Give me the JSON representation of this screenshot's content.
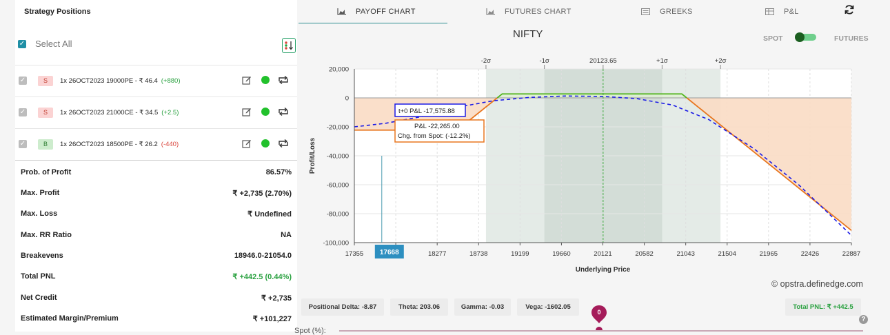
{
  "left_panel": {
    "title": "Strategy Positions",
    "select_all": "Select All",
    "positions": [
      {
        "side": "S",
        "text": "1x  26OCT2023  19000PE  - ₹ 46.4",
        "chg": "(+880)",
        "chg_dir": "pos"
      },
      {
        "side": "S",
        "text": "1x  26OCT2023  21000CE  - ₹ 34.5",
        "chg": "(+2.5)",
        "chg_dir": "pos"
      },
      {
        "side": "B",
        "text": "1x  26OCT2023  18500PE  - ₹ 26.2",
        "chg": "(-440)",
        "chg_dir": "neg"
      }
    ],
    "metrics": [
      {
        "label": "Prob. of Profit",
        "value": "86.57%",
        "green": false
      },
      {
        "label": "Max. Profit",
        "value": "₹ +2,735 (2.70%)",
        "green": false
      },
      {
        "label": "Max. Loss",
        "value": "₹ Undefined",
        "green": false
      },
      {
        "label": "Max. RR Ratio",
        "value": "NA",
        "green": false
      },
      {
        "label": "Breakevens",
        "value": "18946.0-21054.0",
        "green": false
      },
      {
        "label": "Total PNL",
        "value": "₹ +442.5 (0.44%)",
        "green": true
      },
      {
        "label": "Net Credit",
        "value": "₹ +2,735",
        "green": false
      },
      {
        "label": "Estimated Margin/Premium",
        "value": "₹ +101,227",
        "green": false
      }
    ]
  },
  "tabs": [
    {
      "label": "PAYOFF CHART",
      "icon": "area-chart-icon",
      "active": true
    },
    {
      "label": "FUTURES CHART",
      "icon": "area-chart-icon",
      "active": false
    },
    {
      "label": "GREEKS",
      "icon": "list-icon",
      "active": false
    },
    {
      "label": "P&L",
      "icon": "table-icon",
      "active": false
    }
  ],
  "header": {
    "chart_name": "NIFTY",
    "spot_label": "SPOT",
    "futures_label": "FUTURES",
    "credit": "© opstra.definedge.com"
  },
  "colors": {
    "accent": "#1f8fa5",
    "payoff_line": "#e8761f",
    "profit_line": "#53b51f",
    "t0_line": "#1a1ae6",
    "loss_fill": "#f9dcc4",
    "sd_band": "#e4ebe7",
    "green": "#2aa140"
  },
  "chart_data": {
    "type": "line",
    "title": "",
    "xlabel": "Underlying Price",
    "ylabel": "Profit/Loss",
    "xlim": [
      17355,
      22887
    ],
    "ylim": [
      -100000,
      20000
    ],
    "x_ticks": [
      17355,
      17816,
      18277,
      18738,
      19199,
      19660,
      20121,
      20582,
      21043,
      21504,
      21965,
      22426,
      22887
    ],
    "x_tick_labels": [
      "17355",
      "",
      "18277",
      "18738",
      "19199",
      "19660",
      "20121",
      "20582",
      "21043",
      "21504",
      "21965",
      "22426",
      "22887"
    ],
    "y_ticks": [
      20000,
      0,
      -20000,
      -40000,
      -60000,
      -80000,
      -100000
    ],
    "y_tick_labels": [
      "20,000",
      "0",
      "-20,000",
      "-40,000",
      "-60,000",
      "-80,000",
      "-100,000"
    ],
    "sigma_markers": [
      {
        "label": "-2σ",
        "x": 18820
      },
      {
        "label": "-1σ",
        "x": 19470
      },
      {
        "label": "20123.65",
        "x": 20123.65
      },
      {
        "label": "+1σ",
        "x": 20780
      },
      {
        "label": "+2σ",
        "x": 21430
      }
    ],
    "series": [
      {
        "name": "P&L",
        "points": [
          [
            17355,
            -22265
          ],
          [
            18500,
            -22265
          ],
          [
            19000,
            2735
          ],
          [
            21000,
            2735
          ],
          [
            22887,
            -91565
          ]
        ]
      },
      {
        "name": "t+0 P&L",
        "points": [
          [
            17355,
            -20000
          ],
          [
            17700,
            -17576
          ],
          [
            18100,
            -13000
          ],
          [
            18500,
            -6500
          ],
          [
            18900,
            -2000
          ],
          [
            19300,
            300
          ],
          [
            19700,
            1300
          ],
          [
            20121,
            1000
          ],
          [
            20500,
            -500
          ],
          [
            20900,
            -5000
          ],
          [
            21300,
            -15000
          ],
          [
            21800,
            -35000
          ],
          [
            22300,
            -60000
          ],
          [
            22887,
            -95000
          ]
        ]
      }
    ],
    "cursor": {
      "x": 17668,
      "label": "17668"
    },
    "tooltip_t0": "t+0 P&L -17,575.88",
    "tooltip_pl": "P&L -22,265.00",
    "tooltip_chg": "Chg. from Spot: (-12.2%)"
  },
  "greeks": [
    {
      "label": "Positional Delta: -8.87"
    },
    {
      "label": "Theta: 203.06"
    },
    {
      "label": "Gamma: -0.03"
    },
    {
      "label": "Vega: -1602.05"
    }
  ],
  "total_pnl": "Total PNL: ₹ +442.5",
  "slider": {
    "label": "Spot (%):",
    "value": "0"
  }
}
